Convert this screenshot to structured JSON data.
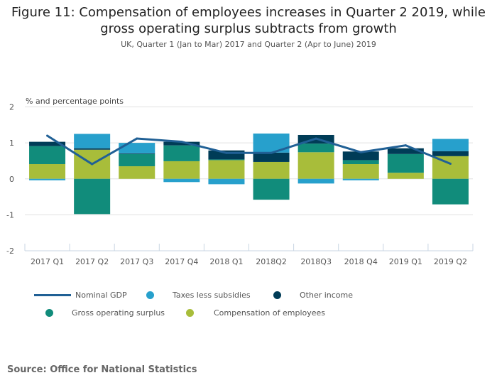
{
  "chart_data": {
    "type": "bar",
    "stacked": true,
    "title": "Figure 11: Compensation of employees increases in Quarter 2 2019, while gross operating surplus subtracts from growth",
    "subtitle": "UK, Quarter 1 (Jan to Mar) 2017 and Quarter 2 (Apr to June) 2019",
    "ylabel": "% and percentage points",
    "xlabel": "",
    "ylim": [
      -2,
      2
    ],
    "yticks": [
      2,
      1,
      0,
      -1,
      -2
    ],
    "grid": true,
    "legend_position": "bottom",
    "categories": [
      "2017 Q1",
      "2017 Q2",
      "2017 Q3",
      "2017 Q4",
      "2018 Q1",
      "2018Q2",
      "2018Q3",
      "2018 Q4",
      "2019 Q1",
      "2019 Q2"
    ],
    "series": [
      {
        "name": "Compensation of employees",
        "kind": "bar",
        "color": "#a8bd3a",
        "values": [
          0.41,
          0.81,
          0.35,
          0.49,
          0.52,
          0.47,
          0.74,
          0.41,
          0.17,
          0.63
        ]
      },
      {
        "name": "Gross operating surplus",
        "kind": "bar",
        "color": "#118c7b",
        "values": [
          0.5,
          -0.98,
          0.34,
          0.44,
          0.02,
          -0.58,
          0.24,
          0.11,
          0.52,
          -0.71
        ]
      },
      {
        "name": "Other income",
        "kind": "bar",
        "color": "#003c57",
        "values": [
          0.12,
          0.04,
          0.02,
          0.1,
          0.25,
          0.26,
          0.24,
          0.24,
          0.16,
          0.14
        ]
      },
      {
        "name": "Taxes less subsidies",
        "kind": "bar",
        "color": "#27a0cc",
        "values": [
          -0.04,
          0.4,
          0.29,
          -0.09,
          -0.15,
          0.53,
          -0.13,
          -0.04,
          0.0,
          0.34
        ]
      },
      {
        "name": "Nominal GDP",
        "kind": "line",
        "color": "#206095",
        "values": [
          1.2,
          0.41,
          1.12,
          1.03,
          0.72,
          0.72,
          1.12,
          0.74,
          0.93,
          0.42
        ]
      }
    ],
    "legend": [
      {
        "label": "Nominal GDP",
        "swatch": "line",
        "color": "#206095"
      },
      {
        "label": "Taxes less subsidies",
        "swatch": "dot",
        "color": "#27a0cc"
      },
      {
        "label": "Other income",
        "swatch": "dot",
        "color": "#003c57"
      },
      {
        "label": "Gross operating surplus",
        "swatch": "dot",
        "color": "#118c7b"
      },
      {
        "label": "Compensation of employees",
        "swatch": "dot",
        "color": "#a8bd3a"
      }
    ]
  },
  "source": "Source: Office for National Statistics"
}
